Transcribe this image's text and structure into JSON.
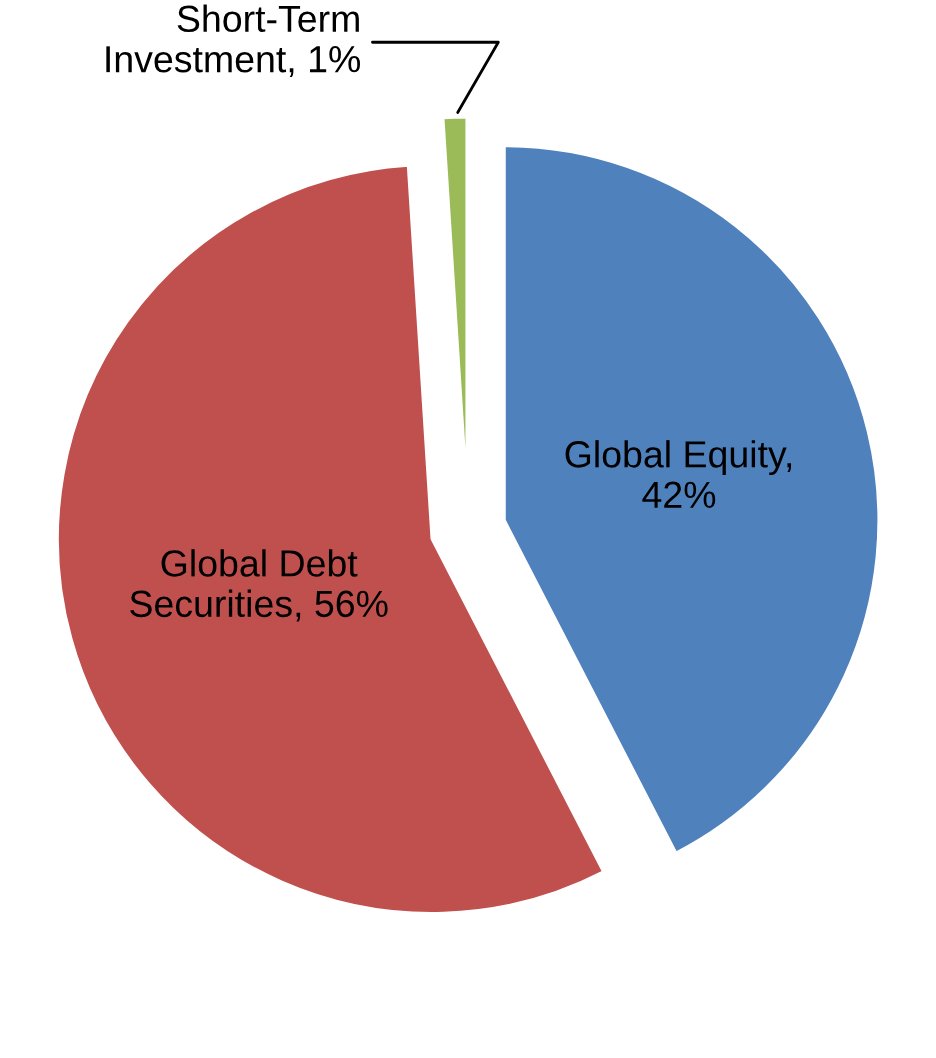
{
  "chart_data": {
    "type": "pie",
    "categories": [
      "Global Equity,\n42%",
      "Global Debt\nSecurities, 56%",
      "Short-Term\nInvestment, 1%"
    ],
    "values": [
      42,
      56,
      1
    ],
    "colors": [
      "#4f81bd",
      "#c0504d",
      "#9bbb59"
    ]
  }
}
